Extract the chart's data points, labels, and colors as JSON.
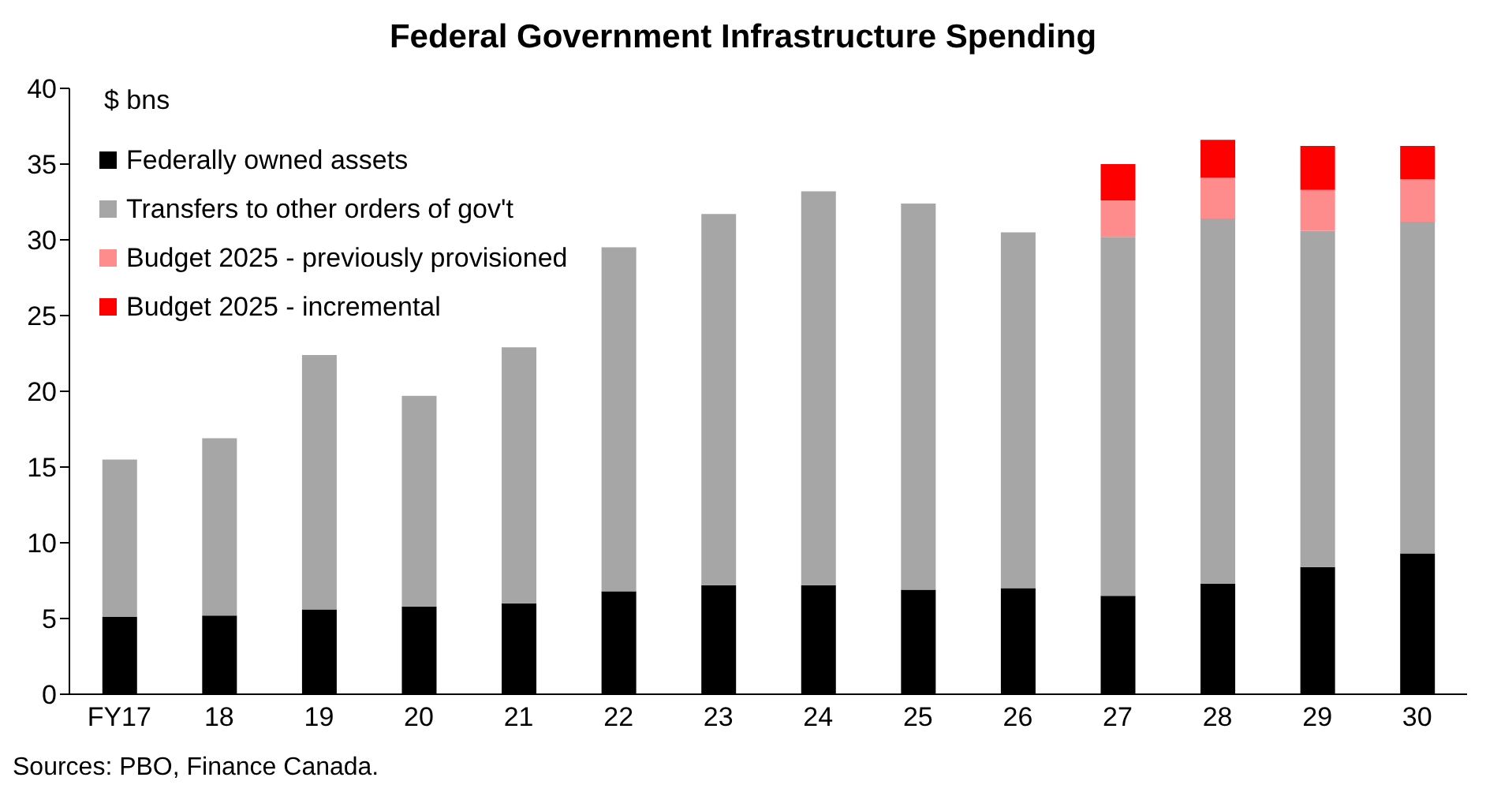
{
  "chart_data": {
    "type": "bar",
    "title": "Federal Government Infrastructure Spending",
    "ylabel": "$ bns",
    "stacked": true,
    "legend": "top left",
    "categories": [
      "FY17",
      "18",
      "19",
      "20",
      "21",
      "22",
      "23",
      "24",
      "25",
      "26",
      "27",
      "28",
      "29",
      "30"
    ],
    "series": [
      {
        "name": "Federally owned assets",
        "color": "#000000",
        "values": [
          5.1,
          5.2,
          5.6,
          5.8,
          6.0,
          6.8,
          7.2,
          7.2,
          6.9,
          7.0,
          6.5,
          7.3,
          8.4,
          9.3
        ]
      },
      {
        "name": "Transfers to other orders of gov't",
        "color": "#a6a6a6",
        "values": [
          10.4,
          11.7,
          16.8,
          13.9,
          16.9,
          22.7,
          24.5,
          26.0,
          25.5,
          23.5,
          23.7,
          24.1,
          22.2,
          21.9
        ]
      },
      {
        "name": "Budget 2025 - previously provisioned",
        "color": "#ff8c8c",
        "values": [
          null,
          null,
          null,
          null,
          null,
          null,
          null,
          null,
          null,
          null,
          2.4,
          2.7,
          2.7,
          2.8
        ]
      },
      {
        "name": "Budget 2025 - incremental",
        "color": "#ff0000",
        "values": [
          null,
          null,
          null,
          null,
          null,
          null,
          null,
          null,
          null,
          null,
          2.4,
          2.5,
          2.9,
          2.2
        ]
      }
    ],
    "ylim": [
      0,
      40
    ],
    "yticks": [
      0,
      5,
      10,
      15,
      20,
      25,
      30,
      35,
      40
    ],
    "annotations": [
      "Sources: PBO, Finance Canada."
    ]
  }
}
